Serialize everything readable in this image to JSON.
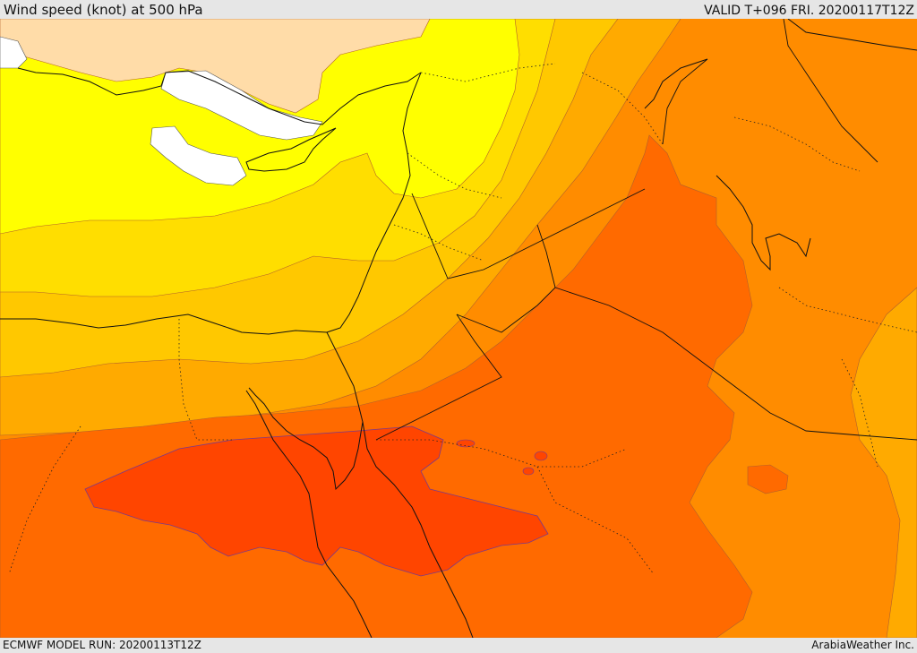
{
  "header": {
    "title": "Wind speed (knot) at 500 hPa",
    "valid": "VALID T+096 FRI. 20200117T12Z"
  },
  "footer": {
    "model_run": "ECMWF MODEL RUN: 20200113T12Z",
    "credit": "ArabiaWeather Inc."
  },
  "palette": {
    "white": "#ffffff",
    "yellow": "#ffff00",
    "gold_light": "#ffde00",
    "gold": "#ffc800",
    "amber": "#ffaa00",
    "orange": "#ff8c00",
    "orange_dark": "#ff6a00",
    "red_orange": "#ff4500",
    "land_other": "#ffdca8"
  }
}
